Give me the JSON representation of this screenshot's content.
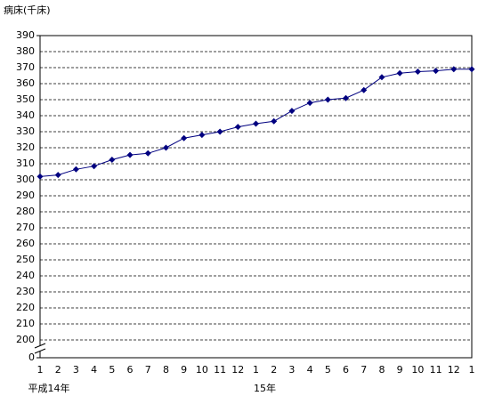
{
  "chart_data": {
    "type": "line",
    "y_axis_label": "病床(千床)",
    "categories": [
      "1",
      "2",
      "3",
      "4",
      "5",
      "6",
      "7",
      "8",
      "9",
      "10",
      "11",
      "12",
      "1",
      "2",
      "3",
      "4",
      "5",
      "6",
      "7",
      "8",
      "9",
      "10",
      "11",
      "12",
      "1"
    ],
    "year_labels": [
      "平成14年",
      null,
      null,
      null,
      null,
      null,
      null,
      null,
      null,
      null,
      null,
      null,
      "15年",
      null,
      null,
      null,
      null,
      null,
      null,
      null,
      null,
      null,
      null,
      null,
      null
    ],
    "series": [
      {
        "color": "#000080",
        "values": [
          302,
          303,
          306.5,
          308.5,
          312.5,
          315.5,
          316.5,
          320,
          326,
          328,
          330,
          333,
          335,
          336.5,
          343,
          348,
          350,
          351,
          356,
          364,
          366.5,
          367.5,
          368,
          369,
          369
        ]
      }
    ],
    "ylim": [
      0,
      390
    ],
    "yticks": [
      0,
      200,
      210,
      220,
      230,
      240,
      250,
      260,
      270,
      280,
      290,
      300,
      310,
      320,
      330,
      340,
      350,
      360,
      370,
      380,
      390
    ],
    "axis_break": true,
    "grid": true
  }
}
